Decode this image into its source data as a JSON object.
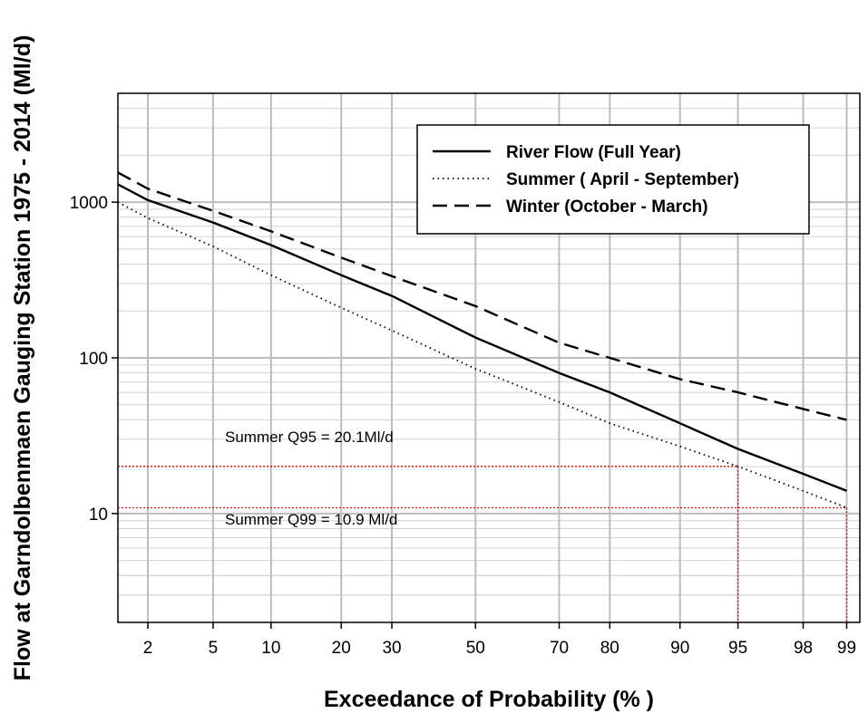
{
  "chart_data": {
    "type": "line",
    "xlabel": "Exceedance of Probability (% )",
    "ylabel": "Flow at Garndolbenmaen Gauging Station 1975 - 2014 (Ml/d)",
    "x_scale": "normal-probability",
    "y_scale": "log",
    "xlim": [
      1.25,
      99.2
    ],
    "ylim": [
      2,
      5000
    ],
    "x_ticks": [
      2,
      5,
      10,
      20,
      30,
      50,
      70,
      80,
      90,
      95,
      98,
      99
    ],
    "x_tick_labels": [
      "2",
      "5",
      "10",
      "20",
      "30",
      "50",
      "70",
      "80",
      "90",
      "95",
      "98",
      "99"
    ],
    "y_ticks": [
      10,
      100,
      1000
    ],
    "y_tick_labels": [
      "10",
      "100",
      "1000"
    ],
    "grid": true,
    "legend_position": "top-right",
    "legend_entries": [
      {
        "name": "River Flow (Full Year)",
        "style": "solid"
      },
      {
        "name": "Summer ( April - September)",
        "style": "dotted"
      },
      {
        "name": "Winter (October - March)",
        "style": "dashed"
      }
    ],
    "series": [
      {
        "name": "River Flow (Full Year)",
        "style": "solid",
        "x": [
          1.25,
          2,
          5,
          10,
          20,
          30,
          50,
          70,
          80,
          90,
          95,
          98,
          99
        ],
        "y": [
          1300,
          1030,
          740,
          530,
          340,
          250,
          135,
          80,
          60,
          38,
          26,
          18,
          14
        ]
      },
      {
        "name": "Summer ( April - September)",
        "style": "dotted",
        "x": [
          1.25,
          2,
          5,
          10,
          20,
          30,
          50,
          70,
          80,
          90,
          95,
          98,
          99
        ],
        "y": [
          1000,
          790,
          520,
          340,
          210,
          150,
          85,
          52,
          38,
          27,
          20.1,
          14,
          10.9
        ]
      },
      {
        "name": "Winter (October - March)",
        "style": "dashed",
        "x": [
          1.25,
          2,
          5,
          10,
          20,
          30,
          50,
          70,
          80,
          90,
          95,
          98,
          99
        ],
        "y": [
          1550,
          1220,
          880,
          650,
          440,
          335,
          215,
          125,
          100,
          73,
          60,
          47,
          40
        ]
      }
    ],
    "annotations": [
      {
        "text": "Summer Q95 = 20.1Ml/d",
        "x": 95,
        "y": 20.1
      },
      {
        "text": "Summer Q99 = 10.9 Ml/d",
        "x": 99,
        "y": 10.9
      }
    ],
    "reference_line_color": "#d00000"
  }
}
